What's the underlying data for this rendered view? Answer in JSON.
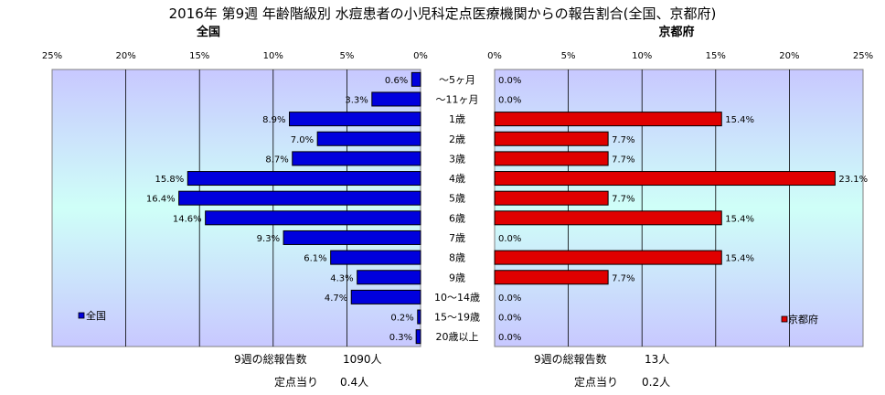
{
  "title": "2016年 第9週 年齢階級別 水痘患者の小児科定点医療機関からの報告割合(全国、京都府)",
  "colors": {
    "national": "#0000dd",
    "kyoto": "#e00000",
    "plot_bg_top": "#c8c8ff",
    "plot_bg_mid": "#cffff8"
  },
  "chart_data": [
    {
      "type": "bar",
      "orientation": "horizontal",
      "direction": "right-to-left",
      "subtitle": "全国",
      "series": [
        {
          "name": "全国",
          "values": [
            0.6,
            3.3,
            8.9,
            7.0,
            8.7,
            15.8,
            16.4,
            14.6,
            9.3,
            6.1,
            4.3,
            4.7,
            0.2,
            0.3
          ]
        }
      ],
      "data_labels": [
        "0.6%",
        "3.3%",
        "8.9%",
        "7.0%",
        "8.7%",
        "15.8%",
        "16.4%",
        "14.6%",
        "9.3%",
        "6.1%",
        "4.3%",
        "4.7%",
        "0.2%",
        "0.3%"
      ],
      "xlim": [
        0,
        25
      ],
      "ticks": [
        "25%",
        "20%",
        "15%",
        "10%",
        "5%",
        "0%"
      ],
      "grid": true,
      "legend": "bottom-left"
    },
    {
      "type": "bar",
      "orientation": "horizontal",
      "direction": "left-to-right",
      "subtitle": "京都府",
      "series": [
        {
          "name": "京都府",
          "values": [
            0.0,
            0.0,
            15.4,
            7.7,
            7.7,
            23.1,
            7.7,
            15.4,
            0.0,
            15.4,
            7.7,
            0.0,
            0.0,
            0.0
          ]
        }
      ],
      "data_labels": [
        "0.0%",
        "0.0%",
        "15.4%",
        "7.7%",
        "7.7%",
        "23.1%",
        "7.7%",
        "15.4%",
        "0.0%",
        "15.4%",
        "7.7%",
        "0.0%",
        "0.0%",
        "0.0%"
      ],
      "xlim": [
        0,
        25
      ],
      "ticks": [
        "0%",
        "5%",
        "10%",
        "15%",
        "20%",
        "25%"
      ],
      "grid": true,
      "legend": "bottom-right"
    }
  ],
  "categories": [
    "～5ヶ月",
    "～11ヶ月",
    "1歳",
    "2歳",
    "3歳",
    "4歳",
    "5歳",
    "6歳",
    "7歳",
    "8歳",
    "9歳",
    "10～14歳",
    "15～19歳",
    "20歳以上"
  ],
  "footer": {
    "national": {
      "total_label": "9週の総報告数",
      "total_value": "1090人",
      "per_label": "定点当り",
      "per_value": "0.4人"
    },
    "kyoto": {
      "total_label": "9週の総報告数",
      "total_value": "13人",
      "per_label": "定点当り",
      "per_value": "0.2人"
    }
  }
}
